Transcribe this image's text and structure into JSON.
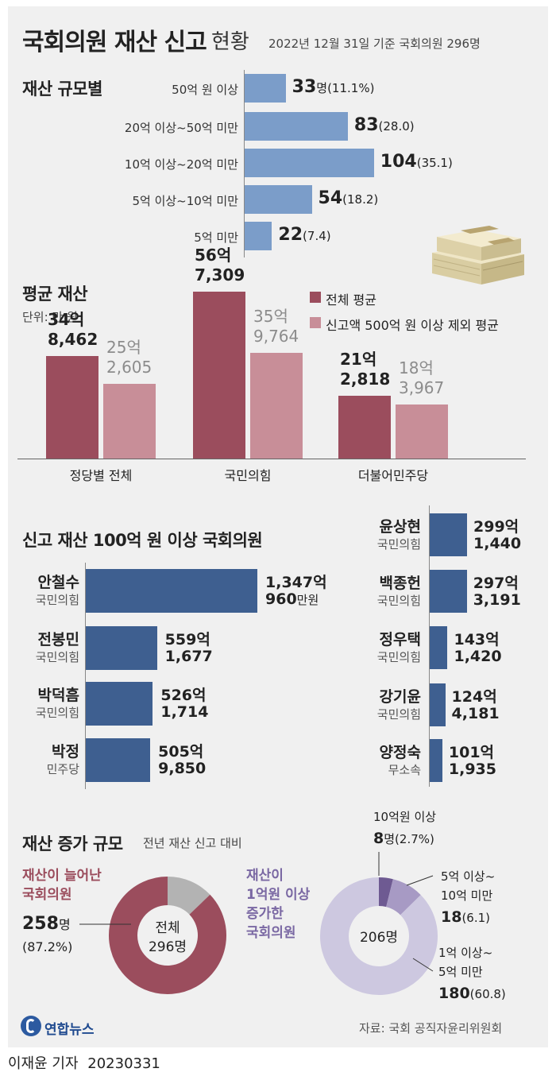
{
  "header": {
    "title": "국회의원 재산 신고",
    "title_suffix": "현황",
    "basis": "2022년 12월 31일 기준 국회의원 296명"
  },
  "charts": {
    "size": {
      "title": "재산 규모별",
      "type": "bar",
      "orientation": "horizontal",
      "categories": [
        "50억 원 이상",
        "20억 이상~50억 미만",
        "10억 이상~20억 미만",
        "5억 이상~10억 미만",
        "5억 미만"
      ],
      "values": [
        33,
        83,
        104,
        54,
        22
      ],
      "value_labels": [
        "33",
        "83",
        "104",
        "54",
        "22"
      ],
      "unit_first": "명",
      "percent_labels": [
        "(11.1%)",
        "(28.0)",
        "(35.1)",
        "(18.2)",
        "(7.4)"
      ],
      "color": "#7b9dc9",
      "xlim": [
        0,
        115
      ]
    },
    "average": {
      "title": "평균 재산",
      "unit": "단위: 만 원",
      "type": "bar",
      "categories": [
        "정당별 전체",
        "국민의힘",
        "더불어민주당"
      ],
      "series": [
        {
          "name": "전체 평균",
          "color": "#9b4d5d",
          "values": [
            348462,
            567309,
            212818
          ],
          "labels": [
            [
              "34억",
              "8,462"
            ],
            [
              "56억",
              "7,309"
            ],
            [
              "21억",
              "2,818"
            ]
          ]
        },
        {
          "name": "신고액 500억 원 이상 제외 평균",
          "color": "#c88e98",
          "values": [
            252605,
            359764,
            183967
          ],
          "labels": [
            [
              "25억",
              "2,605"
            ],
            [
              "35억",
              "9,764"
            ],
            [
              "18억",
              "3,967"
            ]
          ]
        }
      ],
      "ylim": [
        0,
        600000
      ]
    },
    "top": {
      "title": "신고 재산 100억 원 이상 국회의원",
      "type": "bar",
      "orientation": "horizontal",
      "color": "#3e5f90",
      "xlim": [
        0,
        1347.096
      ],
      "left": [
        {
          "name": "안철수",
          "party": "국민의힘",
          "value": 1347.096,
          "line1": "1,347억",
          "line2": "960",
          "line2_unit": "만원"
        },
        {
          "name": "전봉민",
          "party": "국민의힘",
          "value": 559.1677,
          "line1": "559억",
          "line2": "1,677"
        },
        {
          "name": "박덕흠",
          "party": "국민의힘",
          "value": 526.1714,
          "line1": "526억",
          "line2": "1,714"
        },
        {
          "name": "박정",
          "party": "민주당",
          "value": 505.985,
          "line1": "505억",
          "line2": "9,850"
        }
      ],
      "right": [
        {
          "name": "윤상현",
          "party": "국민의힘",
          "value": 299.144,
          "line1": "299억",
          "line2": "1,440"
        },
        {
          "name": "백종헌",
          "party": "국민의힘",
          "value": 297.3191,
          "line1": "297억",
          "line2": "3,191"
        },
        {
          "name": "정우택",
          "party": "국민의힘",
          "value": 143.142,
          "line1": "143억",
          "line2": "1,420"
        },
        {
          "name": "강기윤",
          "party": "국민의힘",
          "value": 124.4181,
          "line1": "124억",
          "line2": "4,181"
        },
        {
          "name": "양정숙",
          "party": "무소속",
          "value": 101.1935,
          "line1": "101억",
          "line2": "1,935"
        }
      ]
    },
    "increase": {
      "title": "재산 증가 규모",
      "subtitle": "전년 재산 신고 대비",
      "donut1": {
        "type": "pie",
        "label_lines": [
          "재산이 늘어난",
          "국회의원"
        ],
        "center_lines": [
          "전체",
          "296명"
        ],
        "value": 258,
        "total": 296,
        "value_label": "258",
        "unit": "명",
        "percent": "(87.2%)",
        "color": "#9b4d5d",
        "rest_color": "#b3b3b3"
      },
      "donut2": {
        "type": "pie",
        "label_lines": [
          "재산이",
          "1억원 이상",
          "증가한",
          "국회의원"
        ],
        "center": "206명",
        "segments": [
          {
            "name": "10억원 이상",
            "value": 8,
            "value_label": "8",
            "unit": "명",
            "percent": "(2.7%)",
            "color": "#6e5a92"
          },
          {
            "name": "5억 이상~ 10억 미만",
            "lines": [
              "5억 이상~",
              "10억 미만"
            ],
            "value": 18,
            "value_label": "18",
            "percent": "(6.1)",
            "color": "#a79ac4"
          },
          {
            "name": "1억 이상~ 5억 미만",
            "lines": [
              "1억 이상~",
              "5억 미만"
            ],
            "value": 180,
            "value_label": "180",
            "percent": "(60.8)",
            "color": "#cdc8e0"
          }
        ]
      }
    }
  },
  "footer": {
    "logo": "연합뉴스",
    "source": "자료: 국회 공직자윤리위원회",
    "credit": "이재윤 기자",
    "date": "20230331"
  }
}
